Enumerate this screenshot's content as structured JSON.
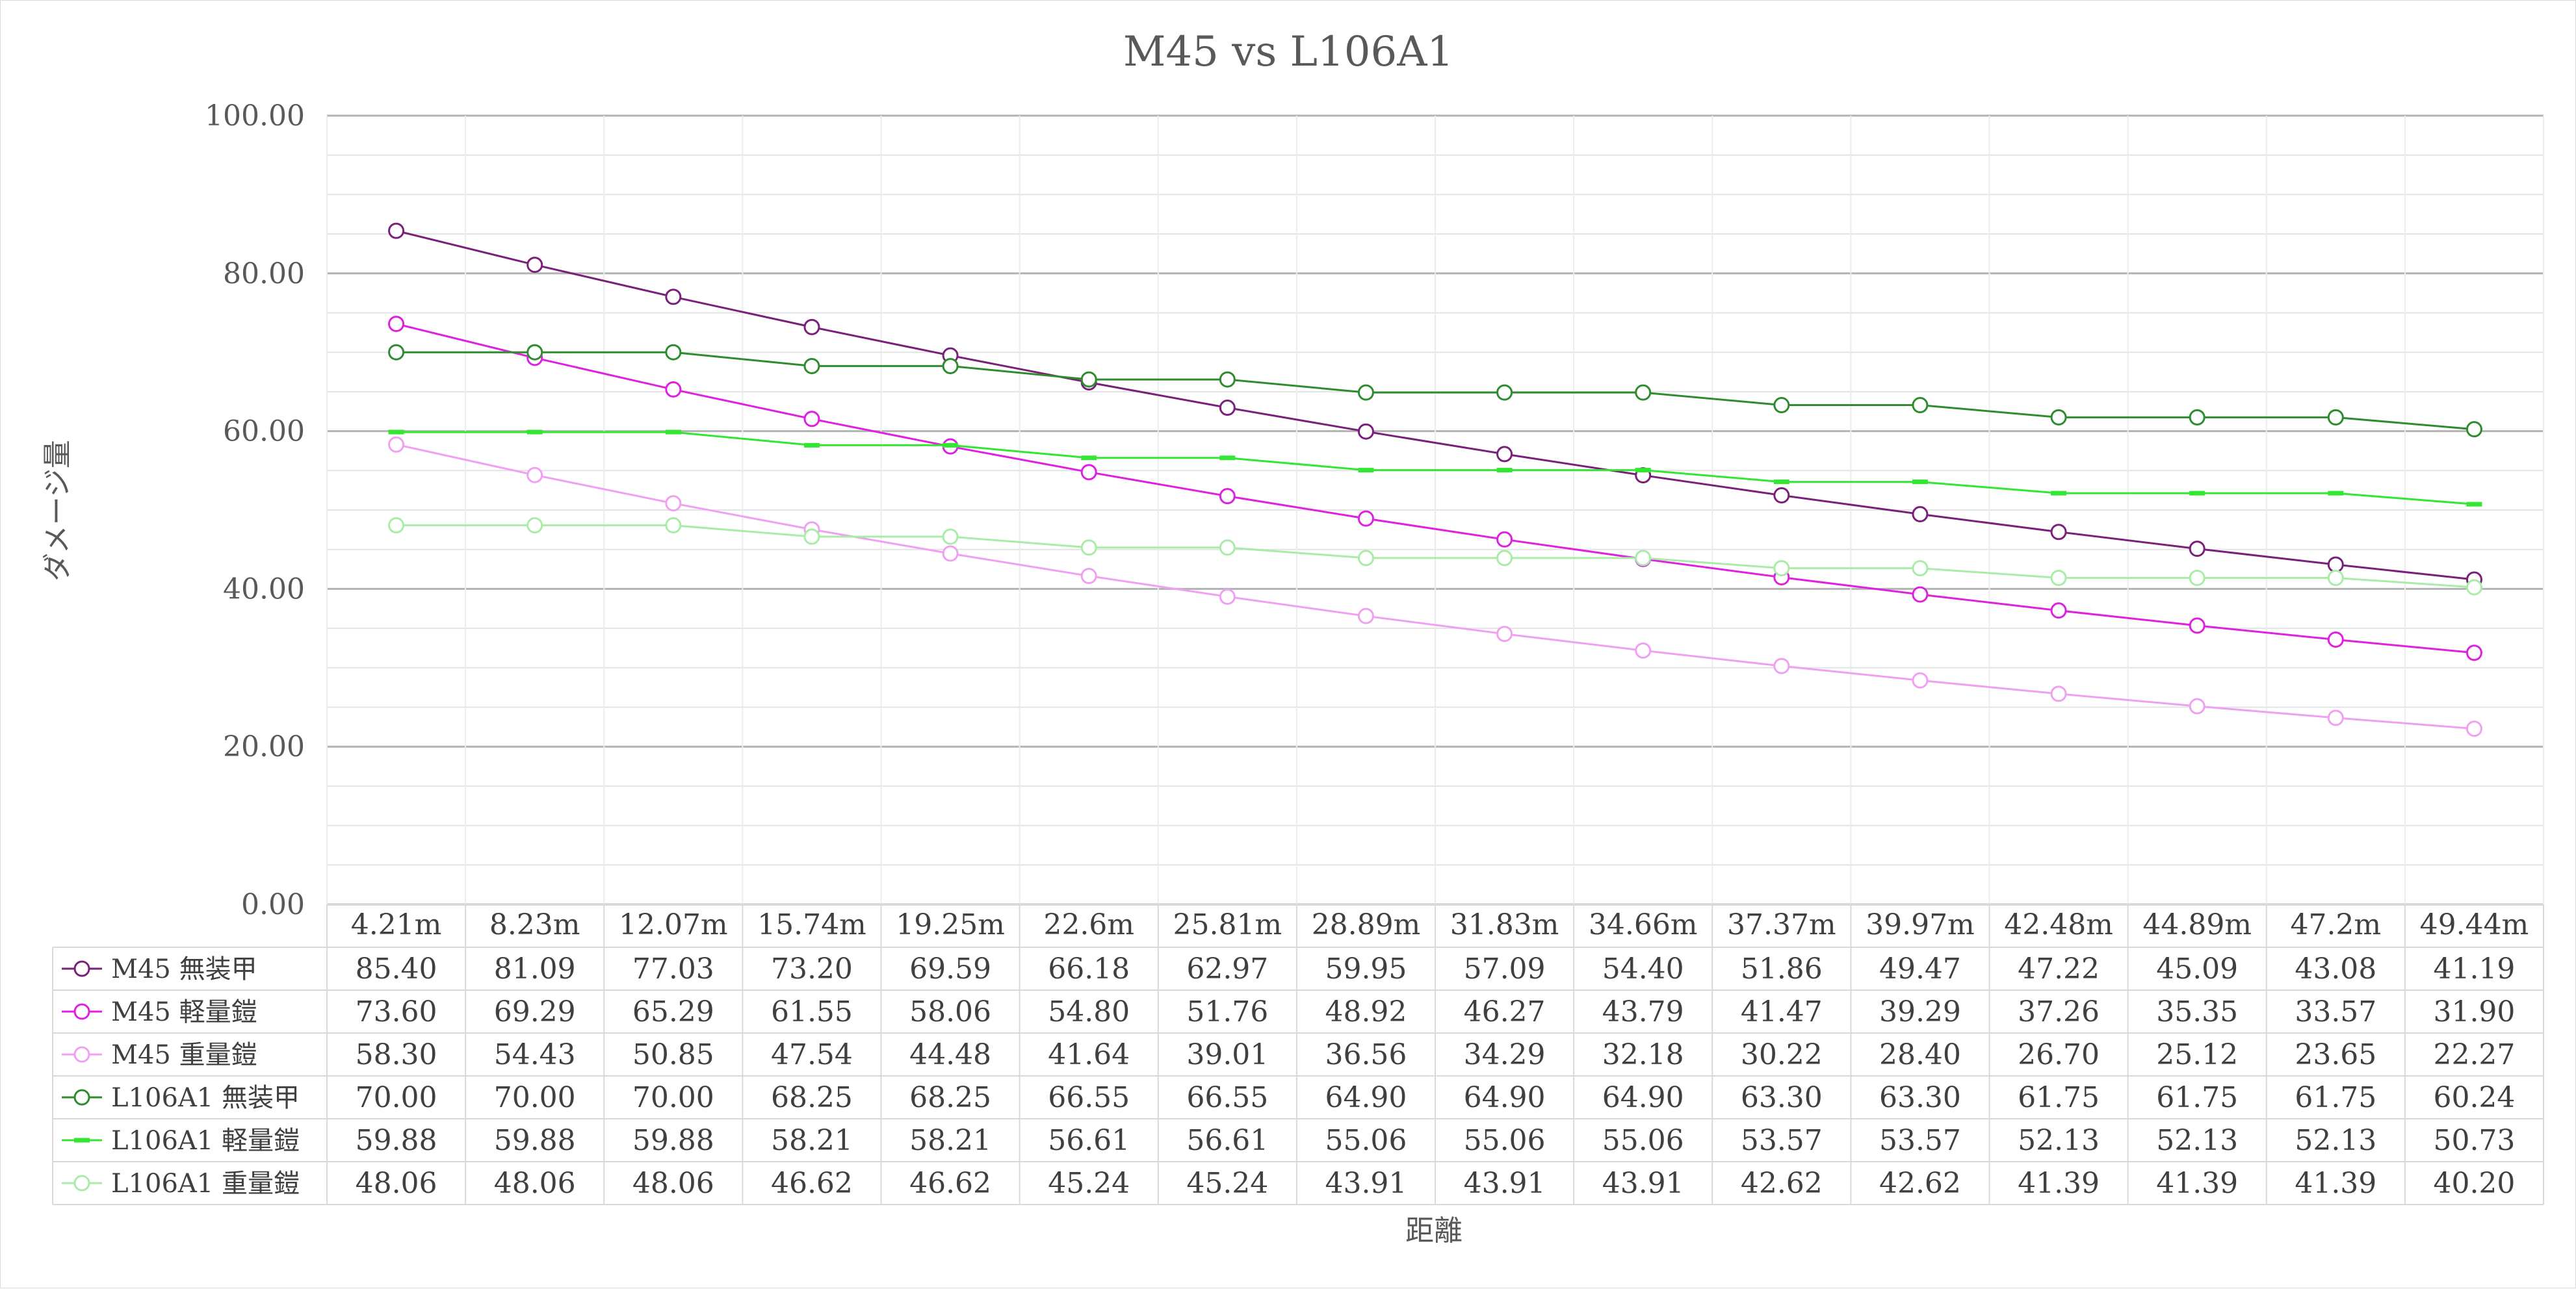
{
  "chart_data": {
    "type": "line",
    "title": "M45 vs L106A1",
    "xlabel": "距離",
    "ylabel": "ダメージ量",
    "ylim": [
      0,
      100
    ],
    "y_ticks": [
      "0.00",
      "20.00",
      "40.00",
      "60.00",
      "80.00",
      "100.00"
    ],
    "grid": true,
    "legend": "data-table",
    "categories": [
      "4.21m",
      "8.23m",
      "12.07m",
      "15.74m",
      "19.25m",
      "22.6m",
      "25.81m",
      "28.89m",
      "31.83m",
      "34.66m",
      "37.37m",
      "39.97m",
      "42.48m",
      "44.89m",
      "47.2m",
      "49.44m"
    ],
    "series": [
      {
        "name": "M45 無装甲",
        "color": "#7a1f7a",
        "marker": "circle",
        "values": [
          85.4,
          81.09,
          77.03,
          73.2,
          69.59,
          66.18,
          62.97,
          59.95,
          57.09,
          54.4,
          51.86,
          49.47,
          47.22,
          45.09,
          43.08,
          41.19
        ],
        "labels": [
          "85.40",
          "81.09",
          "77.03",
          "73.20",
          "69.59",
          "66.18",
          "62.97",
          "59.95",
          "57.09",
          "54.40",
          "51.86",
          "49.47",
          "47.22",
          "45.09",
          "43.08",
          "41.19"
        ]
      },
      {
        "name": "M45 軽量鎧",
        "color": "#e020e0",
        "marker": "circle",
        "values": [
          73.6,
          69.29,
          65.29,
          61.55,
          58.06,
          54.8,
          51.76,
          48.92,
          46.27,
          43.79,
          41.47,
          39.29,
          37.26,
          35.35,
          33.57,
          31.9
        ],
        "labels": [
          "73.60",
          "69.29",
          "65.29",
          "61.55",
          "58.06",
          "54.80",
          "51.76",
          "48.92",
          "46.27",
          "43.79",
          "41.47",
          "39.29",
          "37.26",
          "35.35",
          "33.57",
          "31.90"
        ]
      },
      {
        "name": "M45 重量鎧",
        "color": "#f0a0f0",
        "marker": "circle",
        "values": [
          58.3,
          54.43,
          50.85,
          47.54,
          44.48,
          41.64,
          39.01,
          36.56,
          34.29,
          32.18,
          30.22,
          28.4,
          26.7,
          25.12,
          23.65,
          22.27
        ],
        "labels": [
          "58.30",
          "54.43",
          "50.85",
          "47.54",
          "44.48",
          "41.64",
          "39.01",
          "36.56",
          "34.29",
          "32.18",
          "30.22",
          "28.40",
          "26.70",
          "25.12",
          "23.65",
          "22.27"
        ]
      },
      {
        "name": "L106A1 無装甲",
        "color": "#2e8b2e",
        "marker": "circle",
        "values": [
          70.0,
          70.0,
          70.0,
          68.25,
          68.25,
          66.55,
          66.55,
          64.9,
          64.9,
          64.9,
          63.3,
          63.3,
          61.75,
          61.75,
          61.75,
          60.24
        ],
        "labels": [
          "70.00",
          "70.00",
          "70.00",
          "68.25",
          "68.25",
          "66.55",
          "66.55",
          "64.90",
          "64.90",
          "64.90",
          "63.30",
          "63.30",
          "61.75",
          "61.75",
          "61.75",
          "60.24"
        ]
      },
      {
        "name": "L106A1 軽量鎧",
        "color": "#33e633",
        "marker": "dash",
        "values": [
          59.88,
          59.88,
          59.88,
          58.21,
          58.21,
          56.61,
          56.61,
          55.06,
          55.06,
          55.06,
          53.57,
          53.57,
          52.13,
          52.13,
          52.13,
          50.73
        ],
        "labels": [
          "59.88",
          "59.88",
          "59.88",
          "58.21",
          "58.21",
          "56.61",
          "56.61",
          "55.06",
          "55.06",
          "55.06",
          "53.57",
          "53.57",
          "52.13",
          "52.13",
          "52.13",
          "50.73"
        ]
      },
      {
        "name": "L106A1 重量鎧",
        "color": "#a8eca8",
        "marker": "circle",
        "values": [
          48.06,
          48.06,
          48.06,
          46.62,
          46.62,
          45.24,
          45.24,
          43.91,
          43.91,
          43.91,
          42.62,
          42.62,
          41.39,
          41.39,
          41.39,
          40.2
        ],
        "labels": [
          "48.06",
          "48.06",
          "48.06",
          "46.62",
          "46.62",
          "45.24",
          "45.24",
          "43.91",
          "43.91",
          "43.91",
          "42.62",
          "42.62",
          "41.39",
          "41.39",
          "41.39",
          "40.20"
        ]
      }
    ]
  }
}
